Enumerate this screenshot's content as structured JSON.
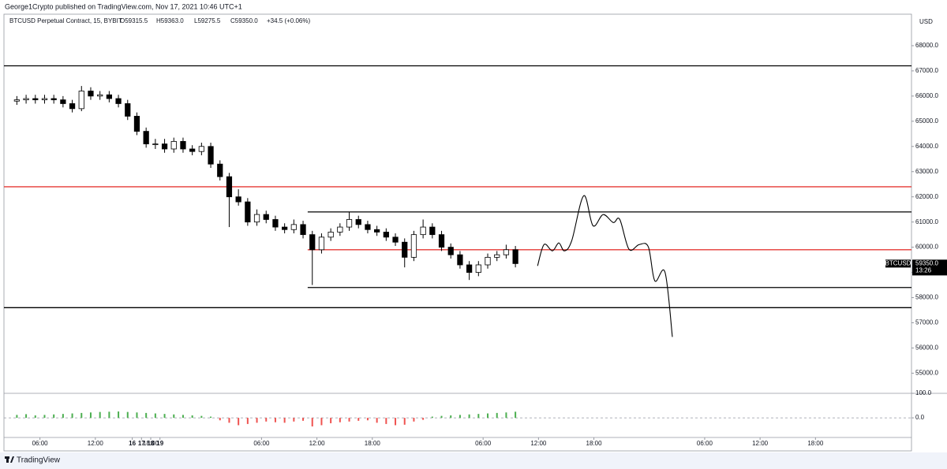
{
  "header": {
    "publisher": "George1Crypto published on TradingView.com, Nov 17, 2021 10:46 UTC+1",
    "footer": "TradingView"
  },
  "chart_data": {
    "type": "candlestick",
    "symbol_info": "BTCUSD Perpetual Contract, 15, BYBIT",
    "ohlc_labels": [
      "O59315.5",
      "H59363.0",
      "L59275.5",
      "C59350.0",
      "+34.5 (+0.06%)"
    ],
    "currency": "USD",
    "x": [
      3.5,
      4.5,
      5.5,
      6.5,
      7.5,
      8.5,
      9.5,
      10.5,
      11.5,
      12.5,
      13.5,
      14.5,
      15.5,
      16.5,
      17.5,
      18.5,
      19.5,
      20.5,
      21.5,
      22.5,
      23.5,
      24.5,
      25.5,
      26.5,
      27.5,
      28.5,
      29.5,
      30.5,
      31.5,
      32.5,
      33.5,
      34.5,
      35.5,
      36.5,
      37.5,
      38.5,
      39.5,
      40.5,
      41.5,
      42.5,
      43.5,
      44.5,
      45.5,
      46.5,
      47.5,
      48.5,
      49.5,
      50.5,
      51.5,
      52.5,
      53.5,
      54.5,
      55.5,
      56.5,
      57.5
    ],
    "open": [
      65800,
      65850,
      65900,
      65850,
      65900,
      65850,
      65700,
      65500,
      66200,
      66000,
      66050,
      65900,
      65700,
      65200,
      64600,
      64100,
      64100,
      63900,
      64200,
      63900,
      63800,
      64000,
      63300,
      62800,
      62000,
      61800,
      61000,
      61300,
      61100,
      60800,
      60700,
      60900,
      60500,
      59900,
      60400,
      60600,
      60800,
      61100,
      60900,
      60700,
      60600,
      60400,
      60200,
      59600,
      60500,
      60800,
      60500,
      60000,
      59700,
      59300,
      59000,
      59300,
      59600,
      59700,
      59900
    ],
    "high": [
      66000,
      66050,
      66050,
      66050,
      66050,
      66000,
      65850,
      66400,
      66350,
      66200,
      66200,
      66050,
      65850,
      65350,
      64750,
      64300,
      64300,
      64350,
      64350,
      64050,
      64150,
      64150,
      63450,
      62950,
      62300,
      61950,
      61500,
      61450,
      61250,
      60950,
      61100,
      61050,
      60650,
      60550,
      60750,
      60950,
      61400,
      61250,
      61050,
      60850,
      60750,
      60550,
      60350,
      60650,
      61100,
      60950,
      60650,
      60150,
      59850,
      59450,
      59450,
      59750,
      59850,
      60100,
      60050
    ],
    "low": [
      65650,
      65700,
      65700,
      65700,
      65700,
      65550,
      65350,
      65400,
      65850,
      65850,
      65750,
      65550,
      65050,
      64450,
      63950,
      63900,
      63750,
      63750,
      63750,
      63650,
      63650,
      63150,
      62650,
      60800,
      61650,
      60850,
      60850,
      60950,
      60650,
      60550,
      60550,
      60350,
      58500,
      59750,
      60250,
      60450,
      60650,
      60750,
      60550,
      60450,
      60250,
      60050,
      59200,
      59450,
      60350,
      60350,
      59850,
      59550,
      59150,
      58700,
      58850,
      59150,
      59450,
      59550,
      59200
    ],
    "close": [
      65850,
      65900,
      65850,
      65900,
      65850,
      65700,
      65500,
      66200,
      66000,
      66050,
      65900,
      65700,
      65200,
      64600,
      64100,
      64100,
      63900,
      64200,
      63900,
      63800,
      64000,
      63300,
      62800,
      62000,
      61800,
      61000,
      61300,
      61100,
      60800,
      60700,
      60900,
      60500,
      59900,
      60400,
      60600,
      60800,
      61100,
      60900,
      60700,
      60600,
      60400,
      60200,
      59600,
      60500,
      60800,
      60500,
      60000,
      59700,
      59300,
      59000,
      59300,
      59600,
      59700,
      59900,
      59350
    ],
    "up_color": "#ffffff",
    "down_color": "#000000",
    "xlim": [
      2.1,
      100.4
    ],
    "xticks": [
      {
        "value": 6,
        "label": "06:00"
      },
      {
        "value": 12,
        "label": "12:00"
      },
      {
        "value": 18,
        "label": "18:00"
      },
      16,
      {
        "value": 30,
        "label": "06:00"
      },
      {
        "value": 36,
        "label": "12:00"
      },
      {
        "value": 42,
        "label": "18:00"
      },
      17,
      {
        "value": 54,
        "label": "06:00"
      },
      {
        "value": 60,
        "label": "12:00"
      },
      {
        "value": 66,
        "label": "18:00"
      },
      18,
      {
        "value": 78,
        "label": "06:00"
      },
      {
        "value": 84,
        "label": "12:00"
      },
      {
        "value": 90,
        "label": "18:00"
      },
      19
    ],
    "ylim": [
      54200,
      69250
    ],
    "yticks": [
      {
        "value": 55000,
        "label": "55000.0"
      },
      {
        "value": 56000,
        "label": "56000.0"
      },
      {
        "value": 57000,
        "label": "57000.0"
      },
      {
        "value": 58000,
        "label": "58000.0"
      },
      {
        "value": 59000,
        "label": "59000.0"
      },
      {
        "value": 60000,
        "label": "60000.0"
      },
      {
        "value": 61000,
        "label": "61000.0"
      },
      {
        "value": 62000,
        "label": "62000.0"
      },
      {
        "value": 63000,
        "label": "63000.0"
      },
      {
        "value": 64000,
        "label": "64000.0"
      },
      {
        "value": 65000,
        "label": "65000.0"
      },
      {
        "value": 66000,
        "label": "66000.0"
      },
      {
        "value": 67000,
        "label": "67000.0"
      },
      {
        "value": 68000,
        "label": "68000.0"
      }
    ],
    "grid": false,
    "levels": [
      {
        "value": 67200,
        "color": "#000000"
      },
      {
        "value": 62400,
        "color": "#e53935"
      },
      {
        "value": 57600,
        "color": "#000000"
      },
      {
        "value": 61400,
        "color": "#000000",
        "x_start": 35
      },
      {
        "value": 59900,
        "color": "#e53935",
        "x_start": 35
      },
      {
        "value": 58400,
        "color": "#000000",
        "x_start": 35
      }
    ],
    "projection": {
      "color": "#000000",
      "x": [
        59.9,
        60.6,
        61.5,
        62.2,
        62.8,
        63.6,
        64.9,
        65.9,
        67.0,
        68.1,
        68.8,
        69.8,
        70.9,
        71.9,
        72.6,
        73.7,
        74.5
      ],
      "values": [
        59260,
        60105,
        59855,
        60170,
        59855,
        60260,
        62045,
        60855,
        61295,
        60980,
        61105,
        59920,
        60105,
        60010,
        58665,
        59010,
        56440
      ]
    },
    "last_price": {
      "name": "BTCUSD",
      "value": 59350,
      "value_label": "59350.0",
      "countdown": "13:26"
    },
    "volume": {
      "values": [
        12,
        15,
        10,
        12,
        14,
        16,
        18,
        20,
        22,
        24,
        25,
        26,
        24,
        22,
        20,
        18,
        16,
        14,
        12,
        10,
        8,
        5,
        -10,
        -20,
        -30,
        -25,
        -20,
        -15,
        -18,
        -20,
        -15,
        -12,
        -35,
        -30,
        -22,
        -18,
        -15,
        -12,
        -10,
        -20,
        -25,
        -30,
        -28,
        -15,
        -8,
        5,
        8,
        10,
        12,
        14,
        16,
        18,
        20,
        22,
        25
      ],
      "up_color": "#4caf50",
      "down_color": "#ef5350",
      "ylim": [
        -80,
        100
      ],
      "yticks": [
        {
          "value": 0,
          "label": "0.0"
        },
        {
          "value": 100,
          "label": "100.0"
        }
      ]
    }
  }
}
